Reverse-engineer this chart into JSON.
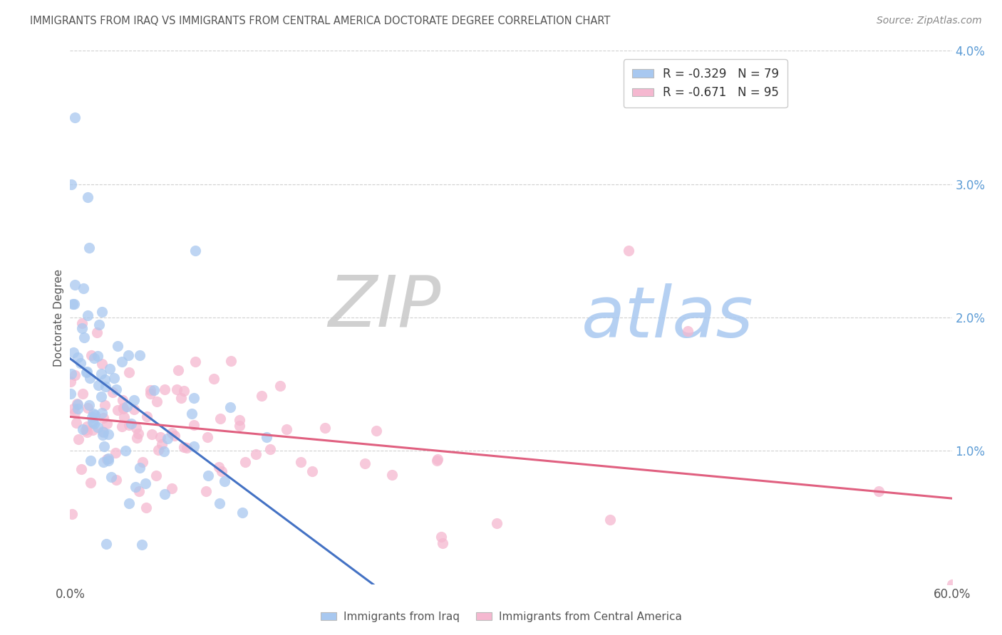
{
  "title": "IMMIGRANTS FROM IRAQ VS IMMIGRANTS FROM CENTRAL AMERICA DOCTORATE DEGREE CORRELATION CHART",
  "source": "Source: ZipAtlas.com",
  "ylabel": "Doctorate Degree",
  "legend_iraq": "R = -0.329   N = 79",
  "legend_central": "R = -0.671   N = 95",
  "color_iraq": "#a8c8f0",
  "color_central": "#f5b8d0",
  "line_color_iraq": "#4472c4",
  "line_color_central": "#e06080",
  "watermark_zip": "ZIP",
  "watermark_atlas": "atlas",
  "watermark_color_zip": "#c8c8c8",
  "watermark_color_atlas": "#a8c8f0",
  "background_color": "#ffffff",
  "grid_color": "#d0d0d0",
  "right_tick_color": "#5b9bd5",
  "xlim": [
    0.0,
    0.6
  ],
  "ylim": [
    0.0,
    0.04
  ],
  "x_ticks": [
    0.0,
    0.6
  ],
  "x_tick_labels": [
    "0.0%",
    "60.0%"
  ],
  "y_ticks": [
    0.0,
    0.01,
    0.02,
    0.03,
    0.04
  ],
  "y_tick_labels": [
    "",
    "1.0%",
    "2.0%",
    "3.0%",
    "4.0%"
  ],
  "bottom_legend_iraq": "Immigrants from Iraq",
  "bottom_legend_central": "Immigrants from Central America"
}
